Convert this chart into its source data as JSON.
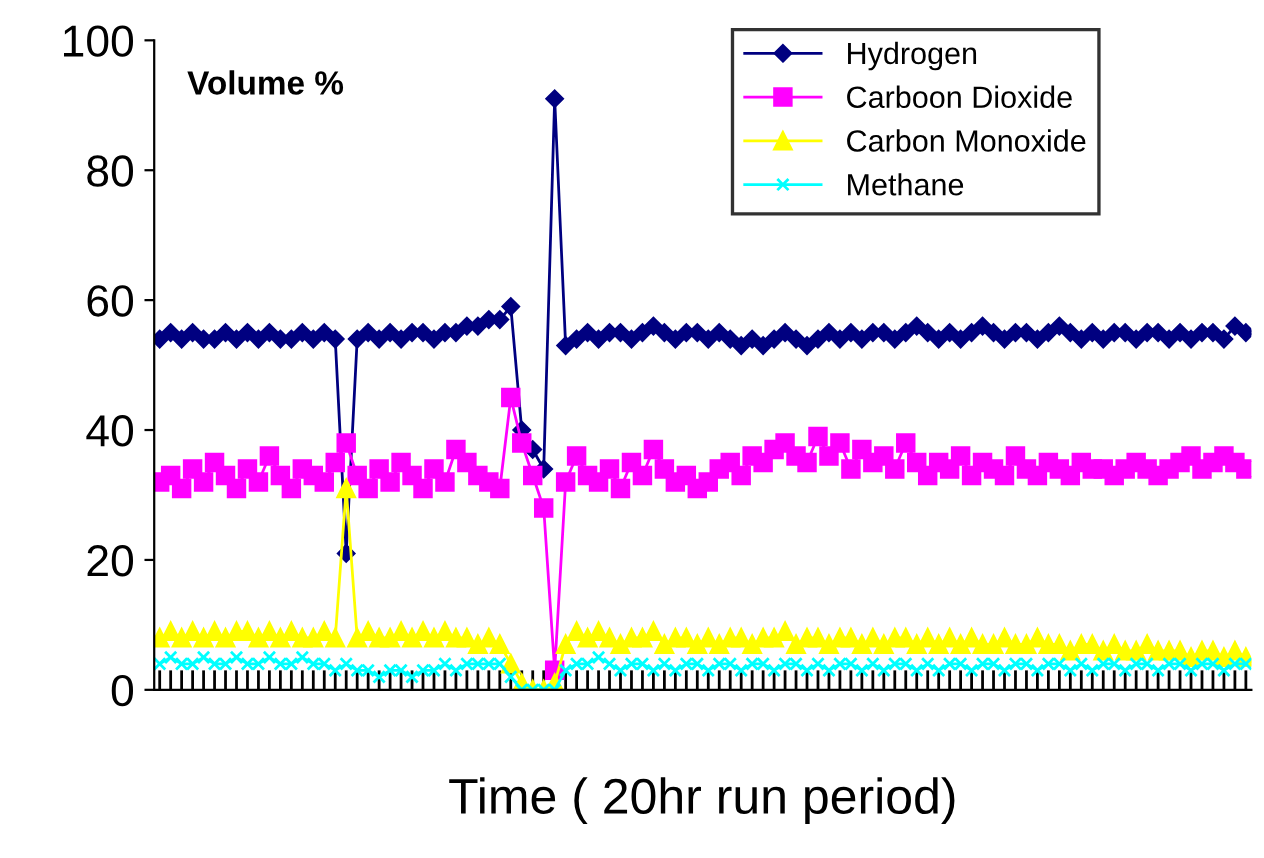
{
  "chart_data": {
    "type": "line",
    "xlabel": "Time ( 20hr run period)",
    "annotations": [
      "Volume %"
    ],
    "categories": [
      null,
      null,
      null,
      null,
      null,
      null,
      null,
      null,
      null,
      null,
      null,
      null,
      null,
      null,
      null,
      null,
      null,
      null,
      null,
      null,
      null,
      null,
      null,
      null,
      null,
      null,
      null,
      null,
      null,
      null,
      null,
      null,
      null,
      null,
      null,
      null,
      null,
      null,
      null,
      null,
      null,
      null,
      null,
      null,
      null,
      null,
      null,
      null,
      null,
      null,
      null,
      null,
      null,
      null,
      null,
      null,
      null,
      null,
      null,
      null,
      null,
      null,
      null,
      null,
      null,
      null,
      null,
      null,
      null,
      null,
      null,
      null,
      null,
      null,
      null,
      null,
      null,
      null,
      null,
      null,
      null,
      null,
      null,
      null,
      null,
      null,
      null,
      null,
      null,
      null,
      null,
      null,
      null,
      null,
      null,
      null,
      null,
      null,
      null,
      null
    ],
    "ylim": [
      0,
      100
    ],
    "yticks": [
      0,
      20,
      40,
      60,
      80,
      100
    ],
    "legend": "top right",
    "series": [
      {
        "name": "Hydrogen",
        "color": "#000080",
        "marker": "diamond",
        "values": [
          54,
          55,
          54,
          55,
          54,
          54,
          55,
          54,
          55,
          54,
          55,
          54,
          54,
          55,
          54,
          55,
          54,
          21,
          54,
          55,
          54,
          55,
          54,
          55,
          55,
          54,
          55,
          55,
          56,
          56,
          57,
          57,
          59,
          40,
          37,
          34,
          91,
          53,
          54,
          55,
          54,
          55,
          55,
          54,
          55,
          56,
          55,
          54,
          55,
          55,
          54,
          55,
          54,
          53,
          54,
          53,
          54,
          55,
          54,
          53,
          54,
          55,
          54,
          55,
          54,
          55,
          55,
          54,
          55,
          56,
          55,
          54,
          55,
          54,
          55,
          56,
          55,
          54,
          55,
          55,
          54,
          55,
          56,
          55,
          54,
          55,
          54,
          55,
          55,
          54,
          55,
          55,
          54,
          55,
          54,
          55,
          55,
          54,
          56,
          55
        ]
      },
      {
        "name": "Carboon Dioxide",
        "color": "#ff00ff",
        "marker": "square",
        "values": [
          32,
          33,
          31,
          34,
          32,
          35,
          33,
          31,
          34,
          32,
          36,
          33,
          31,
          34,
          33,
          32,
          35,
          38,
          33,
          31,
          34,
          32,
          35,
          33,
          31,
          34,
          32,
          37,
          35,
          33,
          32,
          31,
          45,
          38,
          33,
          28,
          3,
          32,
          36,
          33,
          32,
          34,
          31,
          35,
          33,
          37,
          34,
          32,
          33,
          31,
          32,
          34,
          35,
          33,
          36,
          35,
          37,
          38,
          36,
          35,
          39,
          36,
          38,
          34,
          37,
          35,
          36,
          34,
          38,
          35,
          33,
          35,
          34,
          36,
          33,
          35,
          34,
          33,
          36,
          34,
          33,
          35,
          34,
          33,
          35,
          34,
          34,
          33,
          34,
          35,
          34,
          33,
          34,
          35,
          36,
          34,
          35,
          36,
          35,
          34
        ]
      },
      {
        "name": "Carbon Monoxide",
        "color": "#ffff00",
        "marker": "triangle",
        "values": [
          8,
          9,
          8,
          9,
          8,
          9,
          8,
          9,
          9,
          8,
          9,
          8,
          9,
          8,
          8,
          9,
          8,
          31,
          8,
          9,
          8,
          8,
          9,
          8,
          9,
          8,
          9,
          8,
          8,
          7,
          8,
          7,
          4,
          1,
          0,
          0,
          1,
          7,
          9,
          8,
          9,
          8,
          7,
          8,
          8,
          9,
          7,
          8,
          8,
          7,
          8,
          7,
          8,
          8,
          7,
          8,
          8,
          9,
          7,
          8,
          8,
          7,
          8,
          8,
          7,
          8,
          7,
          8,
          8,
          7,
          8,
          7,
          8,
          7,
          8,
          7,
          7,
          8,
          7,
          7,
          8,
          7,
          7,
          6,
          7,
          7,
          6,
          7,
          6,
          6,
          7,
          6,
          6,
          6,
          5,
          6,
          6,
          5,
          6,
          5
        ]
      },
      {
        "name": "Methane",
        "color": "#00ffff",
        "marker": "cross",
        "values": [
          4,
          5,
          4,
          4,
          5,
          4,
          4,
          5,
          4,
          4,
          5,
          4,
          4,
          5,
          4,
          4,
          3,
          4,
          3,
          3,
          2,
          3,
          3,
          2,
          3,
          3,
          4,
          3,
          4,
          4,
          4,
          4,
          2,
          0,
          0,
          0,
          0,
          3,
          4,
          4,
          5,
          4,
          3,
          4,
          4,
          3,
          4,
          3,
          4,
          4,
          3,
          4,
          4,
          3,
          4,
          4,
          3,
          4,
          4,
          3,
          4,
          3,
          4,
          4,
          3,
          4,
          3,
          4,
          4,
          3,
          4,
          3,
          4,
          4,
          3,
          4,
          4,
          3,
          4,
          4,
          3,
          4,
          4,
          3,
          4,
          3,
          4,
          4,
          3,
          4,
          4,
          3,
          4,
          4,
          3,
          4,
          4,
          3,
          4,
          4
        ]
      }
    ]
  }
}
